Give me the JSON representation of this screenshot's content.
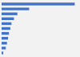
{
  "chart_data": {
    "type": "bar",
    "orientation": "horizontal",
    "categories": [
      null,
      null,
      null,
      null,
      null,
      null,
      null,
      null,
      null,
      null,
      null
    ],
    "values": [
      1300,
      490,
      280,
      220,
      175,
      155,
      130,
      115,
      95,
      75,
      30
    ],
    "color": "#4472c4",
    "xlim": [
      0,
      1365
    ],
    "grid": false,
    "tick_labels": false
  }
}
